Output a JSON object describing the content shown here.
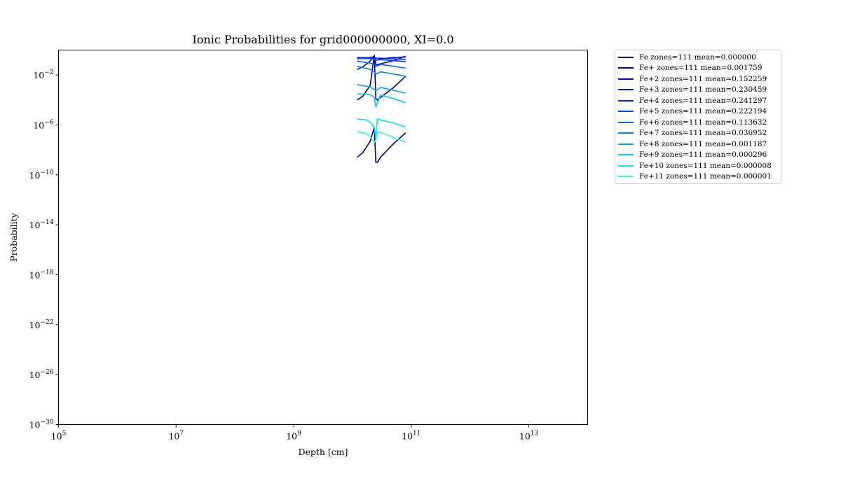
{
  "chart_data": {
    "type": "line",
    "title": "Ionic Probabilities for grid000000000, XI=0.0",
    "xlabel": "Depth [cm]",
    "ylabel": "Probability",
    "xscale": "log",
    "yscale": "log",
    "xlim": [
      100000,
      100000000000000
    ],
    "ylim": [
      1e-30,
      1
    ],
    "x_ticks": [
      {
        "value": 100000,
        "base": "10",
        "exp": "5"
      },
      {
        "value": 10000000,
        "base": "10",
        "exp": "7"
      },
      {
        "value": 1000000000,
        "base": "10",
        "exp": "9"
      },
      {
        "value": 100000000000,
        "base": "10",
        "exp": "11"
      },
      {
        "value": 10000000000000,
        "base": "10",
        "exp": "13"
      }
    ],
    "y_ticks": [
      {
        "value": 1e-30,
        "base": "10",
        "exp": "−30"
      },
      {
        "value": 1e-26,
        "base": "10",
        "exp": "−26"
      },
      {
        "value": 1e-22,
        "base": "10",
        "exp": "−22"
      },
      {
        "value": 1e-18,
        "base": "10",
        "exp": "−18"
      },
      {
        "value": 1e-14,
        "base": "10",
        "exp": "−14"
      },
      {
        "value": 1e-10,
        "base": "10",
        "exp": "−10"
      },
      {
        "value": 1e-06,
        "base": "10",
        "exp": "−6"
      },
      {
        "value": 0.01,
        "base": "10",
        "exp": "−2"
      }
    ],
    "grid": false,
    "legend_position": "outside-right",
    "series": [
      {
        "name": "Fe zones=111 mean=0.000000",
        "color": "#00007f",
        "x": [
          12000000000.0,
          15000000000.0,
          20000000000.0,
          23500000000.0,
          25000000000.0,
          26500000000.0,
          30000000000.0,
          50000000000.0,
          80000000000.0
        ],
        "y": [
          2.6e-09,
          6e-09,
          5e-08,
          6.3e-07,
          1e-09,
          1e-09,
          2.6e-09,
          3.2e-08,
          2.3e-07
        ]
      },
      {
        "name": "Fe+ zones=111 mean=0.001759",
        "color": "#000099",
        "x": [
          12000000000.0,
          15000000000.0,
          20000000000.0,
          23500000000.0,
          25000000000.0,
          26500000000.0,
          30000000000.0,
          50000000000.0,
          80000000000.0
        ],
        "y": [
          0.0001,
          0.0002,
          0.0015,
          0.4,
          0.00012,
          0.0001,
          0.00016,
          0.001,
          0.008
        ]
      },
      {
        "name": "Fe+2 zones=111 mean=0.152259",
        "color": "#0000cc",
        "x": [
          12000000000.0,
          15000000000.0,
          20000000000.0,
          23500000000.0,
          25000000000.0,
          26500000000.0,
          30000000000.0,
          50000000000.0,
          80000000000.0
        ],
        "y": [
          0.028,
          0.045,
          0.13,
          0.35,
          0.06,
          0.07,
          0.08,
          0.14,
          0.33
        ]
      },
      {
        "name": "Fe+3 zones=111 mean=0.230459",
        "color": "#0011dd",
        "x": [
          12000000000.0,
          20000000000.0,
          23500000000.0,
          25000000000.0,
          30000000000.0,
          50000000000.0,
          80000000000.0
        ],
        "y": [
          0.2,
          0.25,
          0.3,
          0.15,
          0.2,
          0.25,
          0.28
        ]
      },
      {
        "name": "Fe+4 zones=111 mean=0.241297",
        "color": "#0022e6",
        "x": [
          12000000000.0,
          20000000000.0,
          23500000000.0,
          25000000000.0,
          30000000000.0,
          50000000000.0,
          80000000000.0
        ],
        "y": [
          0.25,
          0.24,
          0.23,
          0.22,
          0.22,
          0.2,
          0.18
        ]
      },
      {
        "name": "Fe+5 zones=111 mean=0.222194",
        "color": "#0044ee",
        "x": [
          12000000000.0,
          20000000000.0,
          23500000000.0,
          25000000000.0,
          30000000000.0,
          50000000000.0,
          80000000000.0
        ],
        "y": [
          0.22,
          0.2,
          0.19,
          0.15,
          0.17,
          0.14,
          0.12
        ]
      },
      {
        "name": "Fe+6 zones=111 mean=0.113632",
        "color": "#0066ee",
        "x": [
          12000000000.0,
          20000000000.0,
          23500000000.0,
          25000000000.0,
          30000000000.0,
          50000000000.0,
          80000000000.0
        ],
        "y": [
          0.13,
          0.09,
          0.07,
          0.05,
          0.07,
          0.05,
          0.035
        ]
      },
      {
        "name": "Fe+7 zones=111 mean=0.036952",
        "color": "#0088dd",
        "x": [
          12000000000.0,
          20000000000.0,
          23500000000.0,
          25000000000.0,
          30000000000.0,
          50000000000.0,
          80000000000.0
        ],
        "y": [
          0.05,
          0.028,
          0.018,
          0.012,
          0.018,
          0.012,
          0.008
        ]
      },
      {
        "name": "Fe+8 zones=111 mean=0.001187",
        "color": "#00a6e6",
        "x": [
          12000000000.0,
          20000000000.0,
          23500000000.0,
          25000000000.0,
          30000000000.0,
          50000000000.0,
          80000000000.0
        ],
        "y": [
          0.0017,
          0.0011,
          0.0007,
          0.00055,
          0.001,
          0.0006,
          0.00035
        ]
      },
      {
        "name": "Fe+9 zones=111 mean=0.000296",
        "color": "#00c8f0",
        "x": [
          12000000000.0,
          20000000000.0,
          23500000000.0,
          25000000000.0,
          30000000000.0,
          50000000000.0,
          80000000000.0
        ],
        "y": [
          0.00032,
          0.00026,
          0.00016,
          3e-05,
          0.00025,
          0.00013,
          6e-05
        ]
      },
      {
        "name": "Fe+10 zones=111 mean=0.000008",
        "color": "#00e6f0",
        "x": [
          12000000000.0,
          17000000000.0,
          20000000000.0,
          23500000000.0,
          25000000000.0,
          26500000000.0,
          30000000000.0,
          50000000000.0,
          80000000000.0
        ],
        "y": [
          3e-06,
          2.6e-06,
          1.6e-06,
          6e-07,
          1e-07,
          3e-06,
          2.5e-06,
          1.4e-06,
          7e-07
        ]
      },
      {
        "name": "Fe+11 zones=111 mean=0.000001",
        "color": "#33ffcc",
        "x": [
          12000000000.0,
          17000000000.0,
          20000000000.0,
          23500000000.0,
          25000000000.0,
          26500000000.0,
          30000000000.0,
          50000000000.0,
          80000000000.0
        ],
        "y": [
          3e-07,
          2e-07,
          1.2e-07,
          4e-08,
          6e-08,
          3e-07,
          2.5e-07,
          1e-07,
          4e-08
        ]
      }
    ]
  }
}
